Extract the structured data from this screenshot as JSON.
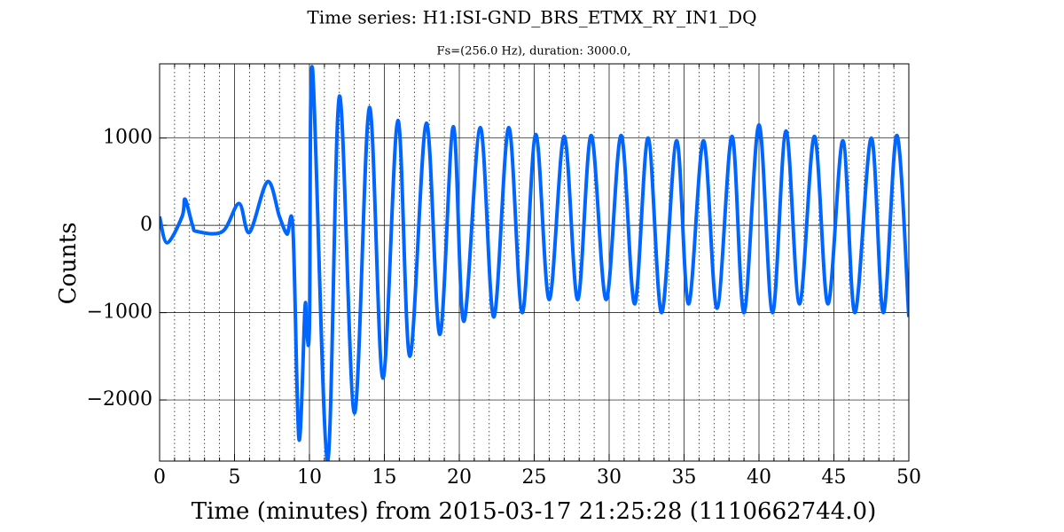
{
  "chart_data": {
    "type": "line",
    "title": "Time series: H1:ISI-GND_BRS_ETMX_RY_IN1_DQ",
    "subtitle": "Fs=(256.0 Hz), duration: 3000.0,",
    "x_label": "Time (minutes) from 2015-03-17 21:25:28 (1110662744.0)",
    "y_label": "Counts",
    "xlim": [
      0,
      50
    ],
    "ylim": [
      -2700,
      1850
    ],
    "xticks": [
      0,
      5,
      10,
      15,
      20,
      25,
      30,
      35,
      40,
      45,
      50
    ],
    "xminorticks": [
      1,
      2,
      3,
      4,
      6,
      7,
      8,
      9,
      11,
      12,
      13,
      14,
      16,
      17,
      18,
      19,
      21,
      22,
      23,
      24,
      26,
      27,
      28,
      29,
      31,
      32,
      33,
      34,
      36,
      37,
      38,
      39,
      41,
      42,
      43,
      44,
      46,
      47,
      48,
      49
    ],
    "yticks": [
      {
        "value": -2000,
        "label": "−2000"
      },
      {
        "value": -1000,
        "label": "−1000"
      },
      0,
      1000
    ],
    "grid": true,
    "series": [
      {
        "name": "H1:ISI-GND_BRS_ETMX_RY_IN1_DQ",
        "color": "#0066ff",
        "x": [
          0,
          0.5,
          1.5,
          1.7,
          2.2,
          2.5,
          4.2,
          5.3,
          6.0,
          7.2,
          8.0,
          8.5,
          8.9,
          9.3,
          9.7,
          9.8,
          10.0,
          10.2,
          11.2,
          12.0,
          13.0,
          14.0,
          14.9,
          15.9,
          16.7,
          17.8,
          18.7,
          19.6,
          20.3,
          21.4,
          22.3,
          23.3,
          24.2,
          25.1,
          26.0,
          27.0,
          27.9,
          28.8,
          29.8,
          30.8,
          31.7,
          32.6,
          33.5,
          34.5,
          35.3,
          36.3,
          37.2,
          38.2,
          39.0,
          40.0,
          40.9,
          41.8,
          42.7,
          43.7,
          44.6,
          45.6,
          46.4,
          47.5,
          48.3,
          49.2,
          50
        ],
        "values": [
          100,
          -200,
          100,
          300,
          0,
          -70,
          -70,
          250,
          -80,
          500,
          100,
          -100,
          -50,
          -2450,
          -950,
          -1150,
          -1150,
          1800,
          -2700,
          1480,
          -2150,
          1350,
          -1750,
          1200,
          -1500,
          1170,
          -1250,
          1130,
          -1100,
          1120,
          -1050,
          1120,
          -1000,
          1040,
          -850,
          1020,
          -850,
          1030,
          -850,
          1030,
          -900,
          1000,
          -1000,
          970,
          -900,
          970,
          -950,
          1020,
          -1000,
          1150,
          -1000,
          1080,
          -900,
          1020,
          -900,
          970,
          -1000,
          1000,
          -1000,
          1030,
          -1050
        ]
      }
    ]
  }
}
